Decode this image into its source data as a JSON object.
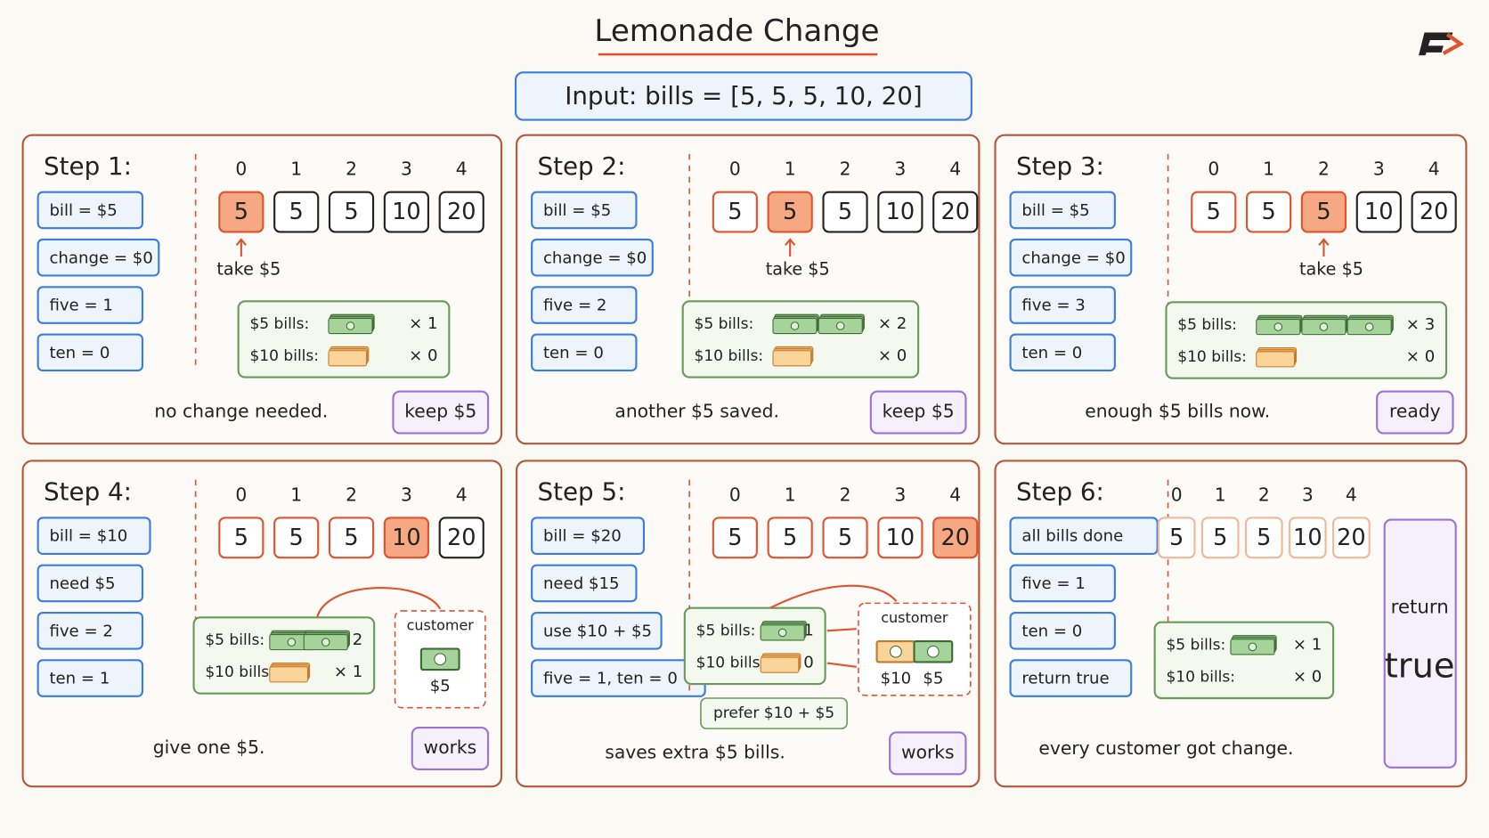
{
  "header": {
    "title": "Lemonade Change",
    "input": "Input:  bills = [5, 5, 5, 10, 20]"
  },
  "steps": [
    {
      "title": "Step 1:",
      "vars": [
        "bill = $5",
        "change = $0",
        "five = 1",
        "ten = 0"
      ],
      "indices": [
        "0",
        "1",
        "2",
        "3",
        "4"
      ],
      "bills": [
        "5",
        "5",
        "5",
        "10",
        "20"
      ],
      "pointer": "take $5",
      "counts": [
        "$5 bills:",
        "× 1",
        "$10 bills:",
        "× 0"
      ],
      "note": "no change needed.",
      "badge": "keep $5"
    },
    {
      "title": "Step 2:",
      "vars": [
        "bill = $5",
        "change = $0",
        "five = 2",
        "ten = 0"
      ],
      "indices": [
        "0",
        "1",
        "2",
        "3",
        "4"
      ],
      "bills": [
        "5",
        "5",
        "5",
        "10",
        "20"
      ],
      "pointer": "take $5",
      "counts": [
        "$5 bills:",
        "× 2",
        "$10 bills:",
        "× 0"
      ],
      "note": "another $5 saved.",
      "badge": "keep $5"
    },
    {
      "title": "Step 3:",
      "vars": [
        "bill = $5",
        "change = $0",
        "five = 3",
        "ten = 0"
      ],
      "indices": [
        "0",
        "1",
        "2",
        "3",
        "4"
      ],
      "bills": [
        "5",
        "5",
        "5",
        "10",
        "20"
      ],
      "pointer": "take $5",
      "counts": [
        "$5 bills:",
        "× 3",
        "$10 bills:",
        "× 0"
      ],
      "note": "enough $5 bills now.",
      "badge": "ready"
    },
    {
      "title": "Step 4:",
      "vars": [
        "bill = $10",
        "need $5",
        "five = 2",
        "ten = 1"
      ],
      "indices": [
        "0",
        "1",
        "2",
        "3",
        "4"
      ],
      "bills": [
        "5",
        "5",
        "5",
        "10",
        "20"
      ],
      "counts": [
        "$5 bills:",
        "× 2",
        "$10 bills:",
        "× 1"
      ],
      "customer": [
        "customer",
        "$5"
      ],
      "note": "give one $5.",
      "badge": "works"
    },
    {
      "title": "Step 5:",
      "vars": [
        "bill = $20",
        "need $15",
        "use $10 + $5",
        "five = 1, ten = 0"
      ],
      "indices": [
        "0",
        "1",
        "2",
        "3",
        "4"
      ],
      "bills": [
        "5",
        "5",
        "5",
        "10",
        "20"
      ],
      "counts": [
        "$5 bills:",
        "× 1",
        "$10 bills:",
        "× 0"
      ],
      "customer": [
        "customer",
        "$10",
        "$5"
      ],
      "prefer": "prefer $10 + $5",
      "note": "saves extra $5 bills.",
      "badge": "works"
    },
    {
      "title": "Step 6:",
      "vars": [
        "all bills done",
        "five = 1",
        "ten = 0",
        "return true"
      ],
      "indices": [
        "0",
        "1",
        "2",
        "3",
        "4"
      ],
      "bills": [
        "5",
        "5",
        "5",
        "10",
        "20"
      ],
      "counts": [
        "$5 bills:",
        "× 1",
        "$10 bills:",
        "× 0"
      ],
      "result": [
        "return",
        "true"
      ],
      "note": "every customer got change."
    }
  ]
}
